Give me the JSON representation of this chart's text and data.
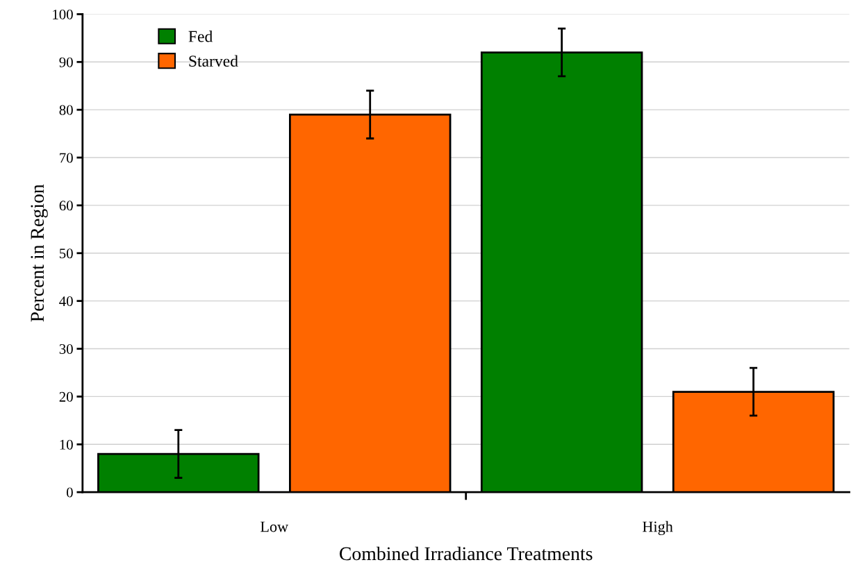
{
  "chart_data": {
    "type": "bar",
    "xlabel": "Combined Irradiance Treatments",
    "ylabel": "Percent in Region",
    "categories": [
      "Low",
      "High"
    ],
    "series": [
      {
        "name": "Fed",
        "color": "#008000",
        "values": [
          8,
          92
        ],
        "errors": [
          5,
          5
        ]
      },
      {
        "name": "Starved",
        "color": "#ff6600",
        "values": [
          79,
          21
        ],
        "errors": [
          5,
          5
        ]
      }
    ],
    "ylim": [
      0,
      100
    ],
    "yticks": [
      0,
      10,
      20,
      30,
      40,
      50,
      60,
      70,
      80,
      90,
      100
    ],
    "grid": "y",
    "legend": "top left"
  }
}
